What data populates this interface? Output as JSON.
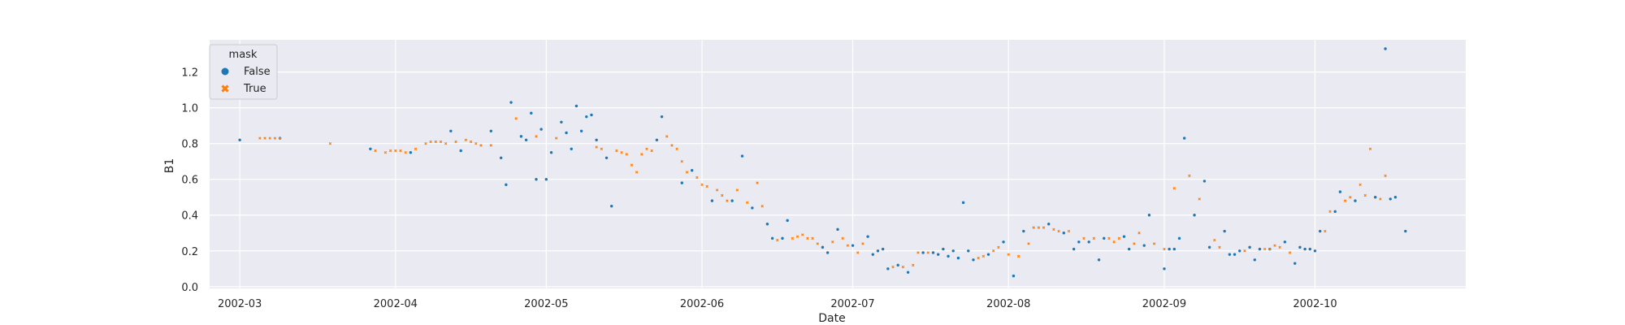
{
  "chart_data": {
    "type": "scatter",
    "xlabel": "Date",
    "ylabel": "B1",
    "x_ticks": [
      "2002-03",
      "2002-04",
      "2002-05",
      "2002-06",
      "2002-07",
      "2002-08",
      "2002-09",
      "2002-10"
    ],
    "y_ticks": [
      "0.0",
      "0.2",
      "0.4",
      "0.6",
      "0.8",
      "1.0",
      "1.2"
    ],
    "xlim": [
      "2002-02-23",
      "2002-10-31"
    ],
    "ylim": [
      -0.01,
      1.38
    ],
    "grid": true,
    "legend": {
      "title": "mask",
      "placement": "upper-left"
    },
    "series": [
      {
        "name": "False",
        "color": "#1f77b4",
        "marker": "circle",
        "points": [
          [
            "2002-03-01",
            0.82
          ],
          [
            "2002-03-09",
            0.83
          ],
          [
            "2002-03-27",
            0.77
          ],
          [
            "2002-04-04",
            0.75
          ],
          [
            "2002-04-12",
            0.87
          ],
          [
            "2002-04-14",
            0.76
          ],
          [
            "2002-04-20",
            0.87
          ],
          [
            "2002-04-22",
            0.72
          ],
          [
            "2002-04-23",
            0.57
          ],
          [
            "2002-04-24",
            1.03
          ],
          [
            "2002-04-26",
            0.84
          ],
          [
            "2002-04-27",
            0.82
          ],
          [
            "2002-04-28",
            0.97
          ],
          [
            "2002-04-29",
            0.6
          ],
          [
            "2002-04-30",
            0.88
          ],
          [
            "2002-05-01",
            0.6
          ],
          [
            "2002-05-02",
            0.75
          ],
          [
            "2002-05-04",
            0.92
          ],
          [
            "2002-05-05",
            0.86
          ],
          [
            "2002-05-06",
            0.77
          ],
          [
            "2002-05-07",
            1.01
          ],
          [
            "2002-05-08",
            0.87
          ],
          [
            "2002-05-09",
            0.95
          ],
          [
            "2002-05-10",
            0.96
          ],
          [
            "2002-05-11",
            0.82
          ],
          [
            "2002-05-13",
            0.72
          ],
          [
            "2002-05-14",
            0.45
          ],
          [
            "2002-05-23",
            0.82
          ],
          [
            "2002-05-24",
            0.95
          ],
          [
            "2002-05-28",
            0.58
          ],
          [
            "2002-05-30",
            0.65
          ],
          [
            "2002-06-03",
            0.48
          ],
          [
            "2002-06-07",
            0.48
          ],
          [
            "2002-06-09",
            0.73
          ],
          [
            "2002-06-11",
            0.44
          ],
          [
            "2002-06-14",
            0.35
          ],
          [
            "2002-06-15",
            0.27
          ],
          [
            "2002-06-17",
            0.27
          ],
          [
            "2002-06-18",
            0.37
          ],
          [
            "2002-06-25",
            0.22
          ],
          [
            "2002-06-26",
            0.19
          ],
          [
            "2002-06-28",
            0.32
          ],
          [
            "2002-07-01",
            0.23
          ],
          [
            "2002-07-04",
            0.28
          ],
          [
            "2002-07-05",
            0.18
          ],
          [
            "2002-07-06",
            0.2
          ],
          [
            "2002-07-07",
            0.21
          ],
          [
            "2002-07-08",
            0.1
          ],
          [
            "2002-07-10",
            0.12
          ],
          [
            "2002-07-12",
            0.08
          ],
          [
            "2002-07-15",
            0.19
          ],
          [
            "2002-07-17",
            0.19
          ],
          [
            "2002-07-18",
            0.18
          ],
          [
            "2002-07-19",
            0.21
          ],
          [
            "2002-07-20",
            0.17
          ],
          [
            "2002-07-21",
            0.2
          ],
          [
            "2002-07-22",
            0.16
          ],
          [
            "2002-07-23",
            0.47
          ],
          [
            "2002-07-24",
            0.2
          ],
          [
            "2002-07-25",
            0.15
          ],
          [
            "2002-07-28",
            0.18
          ],
          [
            "2002-07-31",
            0.25
          ],
          [
            "2002-08-02",
            0.06
          ],
          [
            "2002-08-04",
            0.31
          ],
          [
            "2002-08-09",
            0.35
          ],
          [
            "2002-08-12",
            0.3
          ],
          [
            "2002-08-14",
            0.21
          ],
          [
            "2002-08-15",
            0.25
          ],
          [
            "2002-08-17",
            0.25
          ],
          [
            "2002-08-19",
            0.15
          ],
          [
            "2002-08-20",
            0.27
          ],
          [
            "2002-08-24",
            0.28
          ],
          [
            "2002-08-25",
            0.21
          ],
          [
            "2002-08-28",
            0.23
          ],
          [
            "2002-08-29",
            0.4
          ],
          [
            "2002-09-01",
            0.1
          ],
          [
            "2002-09-02",
            0.21
          ],
          [
            "2002-09-03",
            0.21
          ],
          [
            "2002-09-04",
            0.27
          ],
          [
            "2002-09-05",
            0.83
          ],
          [
            "2002-09-07",
            0.4
          ],
          [
            "2002-09-09",
            0.59
          ],
          [
            "2002-09-10",
            0.22
          ],
          [
            "2002-09-13",
            0.31
          ],
          [
            "2002-09-14",
            0.18
          ],
          [
            "2002-09-15",
            0.18
          ],
          [
            "2002-09-16",
            0.2
          ],
          [
            "2002-09-18",
            0.22
          ],
          [
            "2002-09-19",
            0.15
          ],
          [
            "2002-09-20",
            0.21
          ],
          [
            "2002-09-22",
            0.21
          ],
          [
            "2002-09-25",
            0.25
          ],
          [
            "2002-09-27",
            0.13
          ],
          [
            "2002-09-28",
            0.22
          ],
          [
            "2002-09-29",
            0.21
          ],
          [
            "2002-09-30",
            0.21
          ],
          [
            "2002-10-01",
            0.2
          ],
          [
            "2002-10-02",
            0.31
          ],
          [
            "2002-10-05",
            0.42
          ],
          [
            "2002-10-06",
            0.53
          ],
          [
            "2002-10-09",
            0.48
          ],
          [
            "2002-10-13",
            0.5
          ],
          [
            "2002-10-15",
            1.33
          ],
          [
            "2002-10-16",
            0.49
          ],
          [
            "2002-10-17",
            0.5
          ],
          [
            "2002-10-19",
            0.31
          ]
        ]
      },
      {
        "name": "True",
        "color": "#ff7f0e",
        "marker": "x",
        "points": [
          [
            "2002-03-05",
            0.83
          ],
          [
            "2002-03-06",
            0.83
          ],
          [
            "2002-03-07",
            0.83
          ],
          [
            "2002-03-08",
            0.83
          ],
          [
            "2002-03-09",
            0.83
          ],
          [
            "2002-03-19",
            0.8
          ],
          [
            "2002-03-28",
            0.76
          ],
          [
            "2002-03-30",
            0.75
          ],
          [
            "2002-03-31",
            0.76
          ],
          [
            "2002-04-01",
            0.76
          ],
          [
            "2002-04-02",
            0.76
          ],
          [
            "2002-04-03",
            0.75
          ],
          [
            "2002-04-05",
            0.77
          ],
          [
            "2002-04-07",
            0.8
          ],
          [
            "2002-04-08",
            0.81
          ],
          [
            "2002-04-09",
            0.81
          ],
          [
            "2002-04-10",
            0.81
          ],
          [
            "2002-04-11",
            0.8
          ],
          [
            "2002-04-13",
            0.81
          ],
          [
            "2002-04-15",
            0.82
          ],
          [
            "2002-04-16",
            0.81
          ],
          [
            "2002-04-17",
            0.8
          ],
          [
            "2002-04-18",
            0.79
          ],
          [
            "2002-04-20",
            0.79
          ],
          [
            "2002-04-25",
            0.94
          ],
          [
            "2002-04-29",
            0.84
          ],
          [
            "2002-05-03",
            0.83
          ],
          [
            "2002-05-11",
            0.78
          ],
          [
            "2002-05-12",
            0.77
          ],
          [
            "2002-05-15",
            0.76
          ],
          [
            "2002-05-16",
            0.75
          ],
          [
            "2002-05-17",
            0.74
          ],
          [
            "2002-05-18",
            0.68
          ],
          [
            "2002-05-19",
            0.64
          ],
          [
            "2002-05-20",
            0.74
          ],
          [
            "2002-05-21",
            0.77
          ],
          [
            "2002-05-22",
            0.76
          ],
          [
            "2002-05-25",
            0.84
          ],
          [
            "2002-05-26",
            0.79
          ],
          [
            "2002-05-27",
            0.77
          ],
          [
            "2002-05-28",
            0.7
          ],
          [
            "2002-05-29",
            0.64
          ],
          [
            "2002-05-31",
            0.61
          ],
          [
            "2002-06-01",
            0.57
          ],
          [
            "2002-06-02",
            0.56
          ],
          [
            "2002-06-04",
            0.54
          ],
          [
            "2002-06-05",
            0.51
          ],
          [
            "2002-06-06",
            0.48
          ],
          [
            "2002-06-08",
            0.54
          ],
          [
            "2002-06-10",
            0.47
          ],
          [
            "2002-06-12",
            0.58
          ],
          [
            "2002-06-13",
            0.45
          ],
          [
            "2002-06-16",
            0.26
          ],
          [
            "2002-06-19",
            0.27
          ],
          [
            "2002-06-20",
            0.28
          ],
          [
            "2002-06-21",
            0.29
          ],
          [
            "2002-06-22",
            0.27
          ],
          [
            "2002-06-23",
            0.27
          ],
          [
            "2002-06-24",
            0.24
          ],
          [
            "2002-06-27",
            0.25
          ],
          [
            "2002-06-29",
            0.27
          ],
          [
            "2002-06-30",
            0.23
          ],
          [
            "2002-07-02",
            0.19
          ],
          [
            "2002-07-03",
            0.24
          ],
          [
            "2002-07-09",
            0.11
          ],
          [
            "2002-07-11",
            0.11
          ],
          [
            "2002-07-13",
            0.12
          ],
          [
            "2002-07-14",
            0.19
          ],
          [
            "2002-07-16",
            0.19
          ],
          [
            "2002-07-26",
            0.16
          ],
          [
            "2002-07-27",
            0.17
          ],
          [
            "2002-07-29",
            0.2
          ],
          [
            "2002-07-30",
            0.22
          ],
          [
            "2002-08-01",
            0.18
          ],
          [
            "2002-08-03",
            0.17
          ],
          [
            "2002-08-05",
            0.24
          ],
          [
            "2002-08-06",
            0.33
          ],
          [
            "2002-08-07",
            0.33
          ],
          [
            "2002-08-08",
            0.33
          ],
          [
            "2002-08-10",
            0.32
          ],
          [
            "2002-08-11",
            0.31
          ],
          [
            "2002-08-13",
            0.31
          ],
          [
            "2002-08-16",
            0.27
          ],
          [
            "2002-08-18",
            0.27
          ],
          [
            "2002-08-21",
            0.27
          ],
          [
            "2002-08-22",
            0.25
          ],
          [
            "2002-08-23",
            0.27
          ],
          [
            "2002-08-26",
            0.24
          ],
          [
            "2002-08-27",
            0.3
          ],
          [
            "2002-08-30",
            0.24
          ],
          [
            "2002-09-01",
            0.21
          ],
          [
            "2002-09-03",
            0.55
          ],
          [
            "2002-09-06",
            0.62
          ],
          [
            "2002-09-08",
            0.49
          ],
          [
            "2002-09-11",
            0.26
          ],
          [
            "2002-09-12",
            0.22
          ],
          [
            "2002-09-17",
            0.2
          ],
          [
            "2002-09-21",
            0.21
          ],
          [
            "2002-09-22",
            0.21
          ],
          [
            "2002-09-23",
            0.23
          ],
          [
            "2002-09-24",
            0.22
          ],
          [
            "2002-09-26",
            0.19
          ],
          [
            "2002-10-03",
            0.31
          ],
          [
            "2002-10-04",
            0.42
          ],
          [
            "2002-10-07",
            0.48
          ],
          [
            "2002-10-08",
            0.5
          ],
          [
            "2002-10-10",
            0.57
          ],
          [
            "2002-10-11",
            0.51
          ],
          [
            "2002-10-12",
            0.77
          ],
          [
            "2002-10-14",
            0.49
          ],
          [
            "2002-10-15",
            0.62
          ]
        ]
      }
    ]
  }
}
